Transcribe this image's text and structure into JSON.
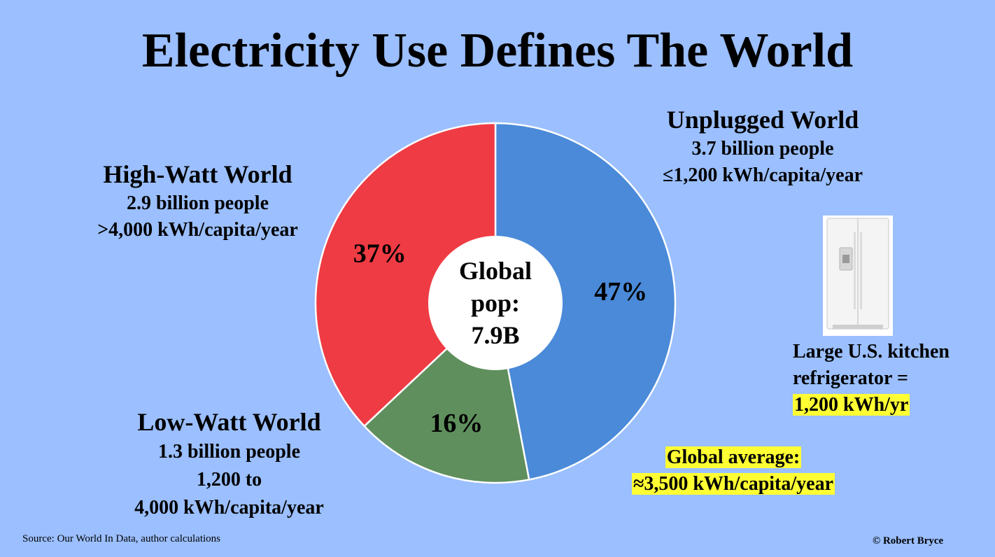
{
  "title": "Electricity Use Defines The World",
  "groups": {
    "high_watt": {
      "name": "High-Watt World",
      "people": "2.9 billion people",
      "usage": ">4,000 kWh/capita/year"
    },
    "unplugged": {
      "name": "Unplugged World",
      "people": "3.7 billion people",
      "usage": "≤1,200 kWh/capita/year"
    },
    "low_watt": {
      "name": "Low-Watt World",
      "people": "1.3 billion people",
      "usage_line1": "1,200 to",
      "usage_line2": "4,000 kWh/capita/year"
    }
  },
  "center_label": {
    "line1": "Global",
    "line2": "pop:",
    "line3": "7.9B"
  },
  "fridge_note": {
    "line1": "Large U.S. kitchen",
    "line2": "refrigerator =",
    "value": "1,200 kWh/yr"
  },
  "average_note": {
    "line1": "Global average:",
    "line2": "≈3,500 kWh/capita/year"
  },
  "source": "Source: Our World In Data, author calculations",
  "copyright": "© Robert Bryce",
  "colors": {
    "background": "#9bbfff",
    "unplugged": "#4a8ad8",
    "low_watt": "#5f8f5d",
    "high_watt": "#ef3b43",
    "highlight": "#ffff33"
  },
  "chart_data": {
    "type": "pie",
    "title": "",
    "slices": [
      {
        "label": "Unplugged World",
        "value": 47,
        "display": "47%",
        "color": "#4a8ad8"
      },
      {
        "label": "Low-Watt World",
        "value": 16,
        "display": "16%",
        "color": "#5f8f5d"
      },
      {
        "label": "High-Watt World",
        "value": 37,
        "display": "37%",
        "color": "#ef3b43"
      }
    ],
    "donut": true
  }
}
